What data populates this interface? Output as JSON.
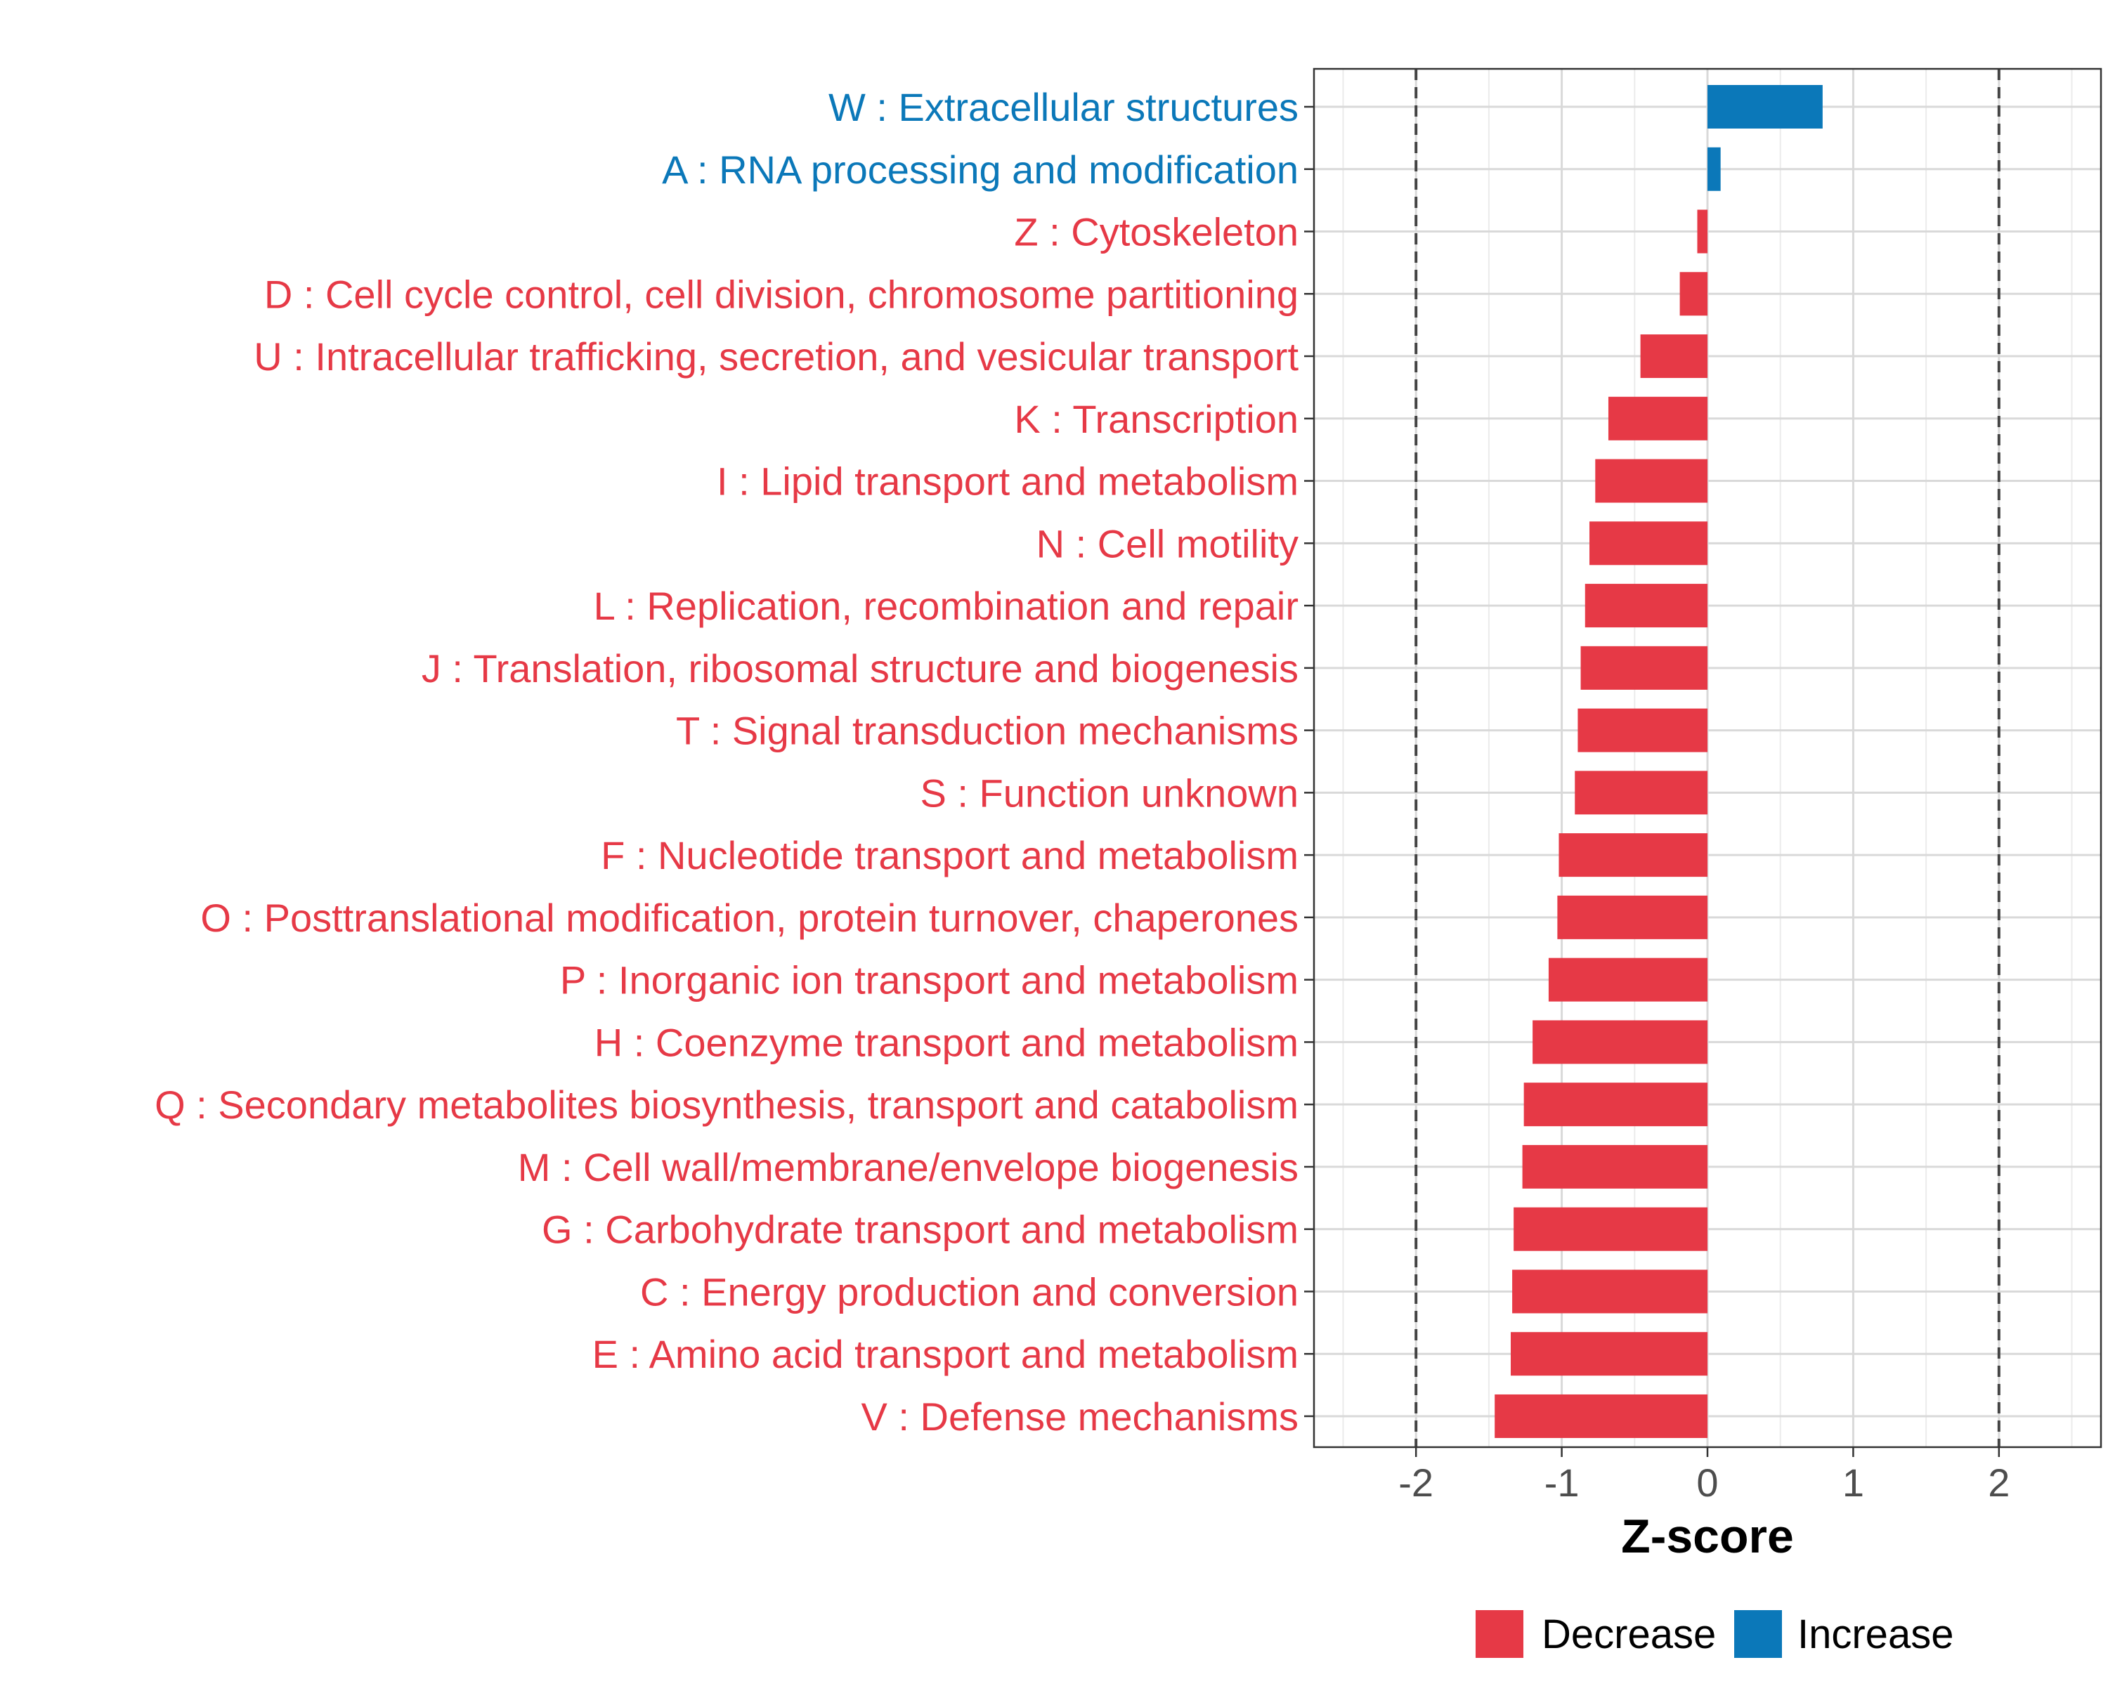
{
  "chart_data": {
    "type": "bar",
    "orientation": "horizontal",
    "xlabel": "Z-score",
    "xlim": [
      -2.7,
      2.7
    ],
    "x_ticks": [
      -2,
      -1,
      0,
      1,
      2
    ],
    "x_tick_labels": [
      "-2",
      "-1",
      "0",
      "1",
      "2"
    ],
    "reference_lines": [
      -2,
      2
    ],
    "grid": true,
    "legend_position": "bottom",
    "colors": {
      "Decrease": "#e63946",
      "Increase": "#0b78b9"
    },
    "legend": [
      {
        "label": "Decrease",
        "color": "#e63946"
      },
      {
        "label": "Increase",
        "color": "#0b78b9"
      }
    ],
    "categories": [
      "W : Extracellular structures",
      "A : RNA processing and modification",
      "Z : Cytoskeleton",
      "D : Cell cycle control, cell division, chromosome partitioning",
      "U : Intracellular trafficking, secretion, and vesicular transport",
      "K : Transcription",
      "I : Lipid transport and metabolism",
      "N : Cell motility",
      "L : Replication, recombination and repair",
      "J : Translation, ribosomal structure and biogenesis",
      "T : Signal transduction mechanisms",
      "S : Function unknown",
      "F : Nucleotide transport and metabolism",
      "O : Posttranslational modification, protein turnover, chaperones",
      "P : Inorganic ion transport and metabolism",
      "H : Coenzyme transport and metabolism",
      "Q : Secondary metabolites biosynthesis, transport and catabolism",
      "M : Cell wall/membrane/envelope biogenesis",
      "G : Carbohydrate transport and metabolism",
      "C : Energy production and conversion",
      "E : Amino acid transport and metabolism",
      "V : Defense mechanisms"
    ],
    "values": [
      0.79,
      0.09,
      -0.07,
      -0.19,
      -0.46,
      -0.68,
      -0.77,
      -0.81,
      -0.84,
      -0.87,
      -0.89,
      -0.91,
      -1.02,
      -1.03,
      -1.09,
      -1.2,
      -1.26,
      -1.27,
      -1.33,
      -1.34,
      -1.35,
      -1.46
    ],
    "groups": [
      "Increase",
      "Increase",
      "Decrease",
      "Decrease",
      "Decrease",
      "Decrease",
      "Decrease",
      "Decrease",
      "Decrease",
      "Decrease",
      "Decrease",
      "Decrease",
      "Decrease",
      "Decrease",
      "Decrease",
      "Decrease",
      "Decrease",
      "Decrease",
      "Decrease",
      "Decrease",
      "Decrease",
      "Decrease"
    ]
  }
}
